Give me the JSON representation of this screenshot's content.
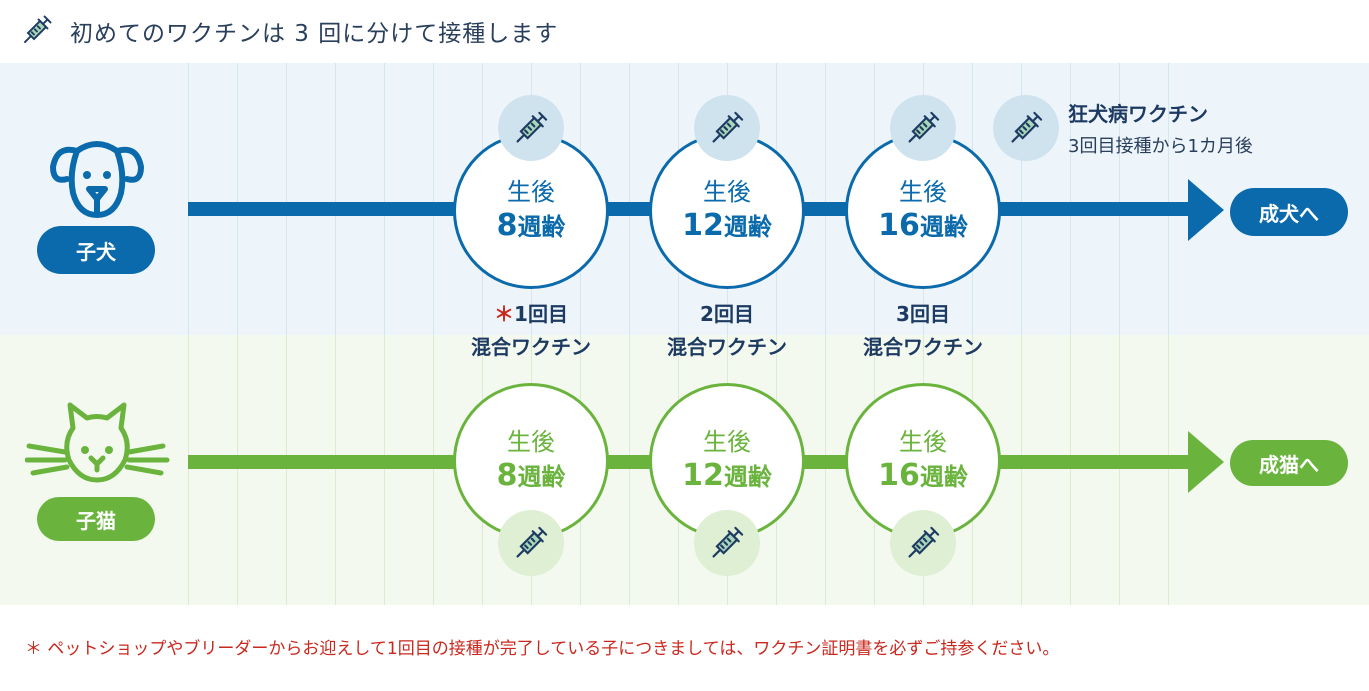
{
  "title": "初めてのワクチンは 3 回に分けて接種します",
  "colors": {
    "dog": "#0a6aab",
    "cat": "#6ab43e",
    "dog_bg": "#edf5fa",
    "cat_bg": "#f4f9f0",
    "note": "#c9281e",
    "text": "#1d3a62"
  },
  "dog": {
    "label": "子犬",
    "end_label": "成犬へ",
    "stages": [
      {
        "top": "生後",
        "num": "8",
        "unit": "週齢"
      },
      {
        "top": "生後",
        "num": "12",
        "unit": "週齢"
      },
      {
        "top": "生後",
        "num": "16",
        "unit": "週齢"
      }
    ],
    "rabies": {
      "title": "狂犬病ワクチン",
      "sub": "3回目接種から1カ月後"
    }
  },
  "doses": [
    {
      "mark": "＊",
      "count": "1回目",
      "name": "混合ワクチン"
    },
    {
      "mark": "",
      "count": "2回目",
      "name": "混合ワクチン"
    },
    {
      "mark": "",
      "count": "3回目",
      "name": "混合ワクチン"
    }
  ],
  "cat": {
    "label": "子猫",
    "end_label": "成猫へ",
    "stages": [
      {
        "top": "生後",
        "num": "8",
        "unit": "週齢"
      },
      {
        "top": "生後",
        "num": "12",
        "unit": "週齢"
      },
      {
        "top": "生後",
        "num": "16",
        "unit": "週齢"
      }
    ]
  },
  "note": {
    "mark": "＊",
    "text": "ペットショップやブリーダーからお迎えして1回目の接種が完了している子につきましては、ワクチン証明書を必ずご持参ください。"
  },
  "icons": [
    "syringe-icon",
    "dog-icon",
    "cat-icon",
    "arrow-right-icon"
  ]
}
